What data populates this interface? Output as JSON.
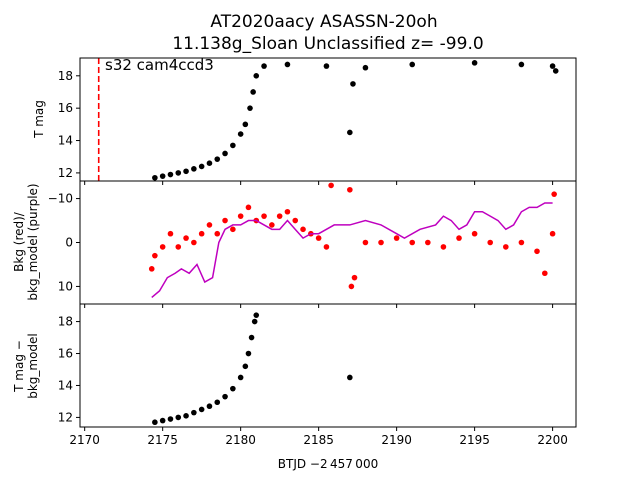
{
  "title_line1": "AT2020aacy  ASASSN-20oh",
  "title_line2": "11.138g_Sloan Unclassified z= -99.0",
  "xlabel": "BTJD −2 457 000",
  "sector_label": "s32 cam4ccd3",
  "colors": {
    "black": "#000000",
    "red": "#ff0000",
    "purple": "#bf00bf",
    "marker_line": "#ff0000"
  },
  "x_ticks": [
    "2170",
    "2175",
    "2180",
    "2185",
    "2190",
    "2195",
    "2200"
  ],
  "chart_data": [
    {
      "type": "scatter",
      "panel": "top",
      "ylabel": "T mag",
      "xlim": [
        2169.7,
        2201.5
      ],
      "ylim": [
        19.1,
        11.5
      ],
      "y_inverted": true,
      "yticks": [
        "12",
        "14",
        "16",
        "18"
      ],
      "marker_line_x": 2170.9,
      "series": [
        {
          "color": "#000000",
          "points": [
            [
              2174.5,
              11.7
            ],
            [
              2175.0,
              11.8
            ],
            [
              2175.5,
              11.9
            ],
            [
              2176.0,
              12.0
            ],
            [
              2176.5,
              12.1
            ],
            [
              2177.0,
              12.25
            ],
            [
              2177.5,
              12.4
            ],
            [
              2178.0,
              12.6
            ],
            [
              2178.5,
              12.85
            ],
            [
              2179.0,
              13.2
            ],
            [
              2179.5,
              13.7
            ],
            [
              2180.0,
              14.4
            ],
            [
              2180.3,
              15.0
            ],
            [
              2180.6,
              16.0
            ],
            [
              2180.8,
              17.0
            ],
            [
              2181.0,
              18.0
            ],
            [
              2181.5,
              18.6
            ],
            [
              2183.0,
              18.7
            ],
            [
              2185.5,
              18.6
            ],
            [
              2187.0,
              14.5
            ],
            [
              2187.2,
              17.5
            ],
            [
              2188.0,
              18.5
            ],
            [
              2191.0,
              18.7
            ],
            [
              2195.0,
              18.8
            ],
            [
              2198.0,
              18.7
            ],
            [
              2200.0,
              18.6
            ],
            [
              2200.2,
              18.3
            ]
          ]
        }
      ]
    },
    {
      "type": "scatter+line",
      "panel": "middle",
      "ylabel": "Bkg (red)/\nbkg_model (purple)",
      "xlim": [
        2169.7,
        2201.5
      ],
      "ylim": [
        -14,
        14
      ],
      "yticks": [
        "10",
        "0",
        "−10"
      ],
      "series": [
        {
          "name": "Bkg",
          "color": "#ff0000",
          "points": [
            [
              2174.3,
              6
            ],
            [
              2174.5,
              3
            ],
            [
              2175.0,
              1
            ],
            [
              2175.5,
              -2
            ],
            [
              2176.0,
              1
            ],
            [
              2176.5,
              -1
            ],
            [
              2177.0,
              0
            ],
            [
              2177.5,
              -2
            ],
            [
              2178.0,
              -4
            ],
            [
              2178.5,
              -2
            ],
            [
              2179.0,
              -5
            ],
            [
              2179.5,
              -3
            ],
            [
              2180.0,
              -6
            ],
            [
              2180.5,
              -8
            ],
            [
              2181.0,
              -5
            ],
            [
              2181.5,
              -6
            ],
            [
              2182.0,
              -4
            ],
            [
              2182.5,
              -6
            ],
            [
              2183.0,
              -7
            ],
            [
              2183.5,
              -5
            ],
            [
              2184.0,
              -3
            ],
            [
              2184.5,
              -2
            ],
            [
              2185.0,
              -1
            ],
            [
              2185.5,
              1
            ],
            [
              2185.8,
              -13
            ],
            [
              2187.0,
              -12
            ],
            [
              2187.1,
              10
            ],
            [
              2187.3,
              8
            ],
            [
              2188.0,
              0
            ],
            [
              2189.0,
              0
            ],
            [
              2190.0,
              -1
            ],
            [
              2191.0,
              0
            ],
            [
              2192.0,
              0
            ],
            [
              2193.0,
              1
            ],
            [
              2194.0,
              -1
            ],
            [
              2195.0,
              -2
            ],
            [
              2196.0,
              0
            ],
            [
              2197.0,
              1
            ],
            [
              2198.0,
              0
            ],
            [
              2199.0,
              2
            ],
            [
              2199.5,
              7
            ],
            [
              2200.0,
              -2
            ],
            [
              2200.1,
              -11
            ]
          ]
        },
        {
          "name": "bkg_model",
          "color": "#bf00bf",
          "points": [
            [
              2174.3,
              12.5
            ],
            [
              2174.8,
              11
            ],
            [
              2175.3,
              8
            ],
            [
              2175.8,
              7
            ],
            [
              2176.2,
              6
            ],
            [
              2176.7,
              7
            ],
            [
              2177.2,
              5
            ],
            [
              2177.7,
              9
            ],
            [
              2178.2,
              8
            ],
            [
              2178.6,
              0
            ],
            [
              2179.0,
              -3
            ],
            [
              2179.5,
              -4
            ],
            [
              2180.0,
              -4
            ],
            [
              2180.5,
              -5
            ],
            [
              2181.0,
              -5
            ],
            [
              2181.5,
              -4
            ],
            [
              2182.0,
              -3
            ],
            [
              2182.5,
              -3
            ],
            [
              2183.0,
              -5
            ],
            [
              2183.5,
              -3
            ],
            [
              2184.0,
              -1
            ],
            [
              2184.5,
              -2
            ],
            [
              2185.0,
              -2
            ],
            [
              2185.5,
              -3
            ],
            [
              2186.0,
              -4
            ],
            [
              2186.5,
              -4
            ],
            [
              2187.0,
              -4
            ],
            [
              2188.0,
              -5
            ],
            [
              2189.0,
              -4
            ],
            [
              2190.0,
              -2
            ],
            [
              2190.5,
              -1
            ],
            [
              2191.5,
              -3
            ],
            [
              2192.5,
              -4
            ],
            [
              2193.0,
              -6
            ],
            [
              2193.5,
              -5
            ],
            [
              2194.0,
              -3
            ],
            [
              2194.5,
              -4
            ],
            [
              2195.0,
              -7
            ],
            [
              2195.5,
              -7
            ],
            [
              2196.0,
              -6
            ],
            [
              2196.5,
              -5
            ],
            [
              2197.0,
              -3
            ],
            [
              2197.5,
              -4
            ],
            [
              2198.0,
              -7
            ],
            [
              2198.5,
              -8
            ],
            [
              2199.0,
              -8
            ],
            [
              2199.5,
              -9
            ],
            [
              2200.0,
              -9
            ]
          ]
        }
      ]
    },
    {
      "type": "scatter",
      "panel": "bottom",
      "ylabel": "T mag −\nbkg_model",
      "xlim": [
        2169.7,
        2201.5
      ],
      "ylim": [
        19.1,
        11.4
      ],
      "y_inverted": true,
      "yticks": [
        "12",
        "14",
        "16",
        "18"
      ],
      "series": [
        {
          "color": "#000000",
          "points": [
            [
              2174.5,
              11.7
            ],
            [
              2175.0,
              11.8
            ],
            [
              2175.5,
              11.9
            ],
            [
              2176.0,
              12.0
            ],
            [
              2176.5,
              12.1
            ],
            [
              2177.0,
              12.3
            ],
            [
              2177.5,
              12.5
            ],
            [
              2178.0,
              12.7
            ],
            [
              2178.5,
              12.95
            ],
            [
              2179.0,
              13.3
            ],
            [
              2179.5,
              13.8
            ],
            [
              2180.0,
              14.5
            ],
            [
              2180.3,
              15.2
            ],
            [
              2180.5,
              16.0
            ],
            [
              2180.7,
              17.0
            ],
            [
              2180.9,
              18.0
            ],
            [
              2181.0,
              18.4
            ],
            [
              2187.0,
              14.5
            ]
          ]
        }
      ]
    }
  ]
}
